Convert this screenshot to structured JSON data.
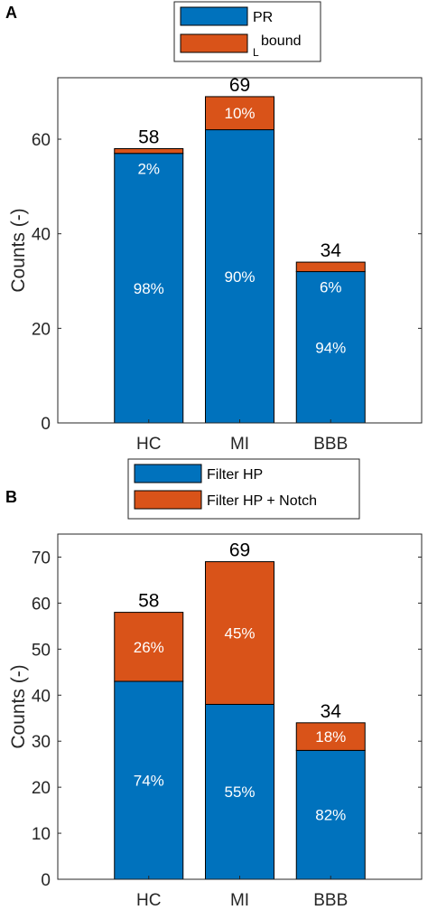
{
  "chart_data": [
    {
      "panel": "A",
      "type": "bar",
      "stacked": true,
      "categories": [
        "HC",
        "MI",
        "BBB"
      ],
      "series": [
        {
          "name": "PR",
          "values": [
            57,
            62,
            32
          ],
          "labels": [
            "98%",
            "90%",
            "94%"
          ]
        },
        {
          "name": "bound",
          "name_prefix": "L",
          "values": [
            1,
            7,
            2
          ],
          "labels": [
            "2%",
            "10%",
            "6%"
          ]
        }
      ],
      "totals": [
        "58",
        "69",
        "34"
      ],
      "ylabel": "Counts (-)",
      "ylim": [
        0,
        73
      ],
      "yticks": [
        0,
        20,
        40,
        60
      ],
      "legend": "top-center",
      "grid": false
    },
    {
      "panel": "B",
      "type": "bar",
      "stacked": true,
      "categories": [
        "HC",
        "MI",
        "BBB"
      ],
      "series": [
        {
          "name": "Filter HP",
          "values": [
            43,
            38,
            28
          ],
          "labels": [
            "74%",
            "55%",
            "82%"
          ]
        },
        {
          "name": "Filter HP + Notch",
          "values": [
            15,
            31,
            6
          ],
          "labels": [
            "26%",
            "45%",
            "18%"
          ]
        }
      ],
      "totals": [
        "58",
        "69",
        "34"
      ],
      "ylabel": "Counts (-)",
      "ylim": [
        0,
        75
      ],
      "yticks": [
        0,
        10,
        20,
        30,
        40,
        50,
        60,
        70
      ],
      "legend": "top-center",
      "grid": false
    }
  ],
  "colors": {
    "series1": "#0072BD",
    "series2": "#D95319",
    "axis": "#262626"
  }
}
